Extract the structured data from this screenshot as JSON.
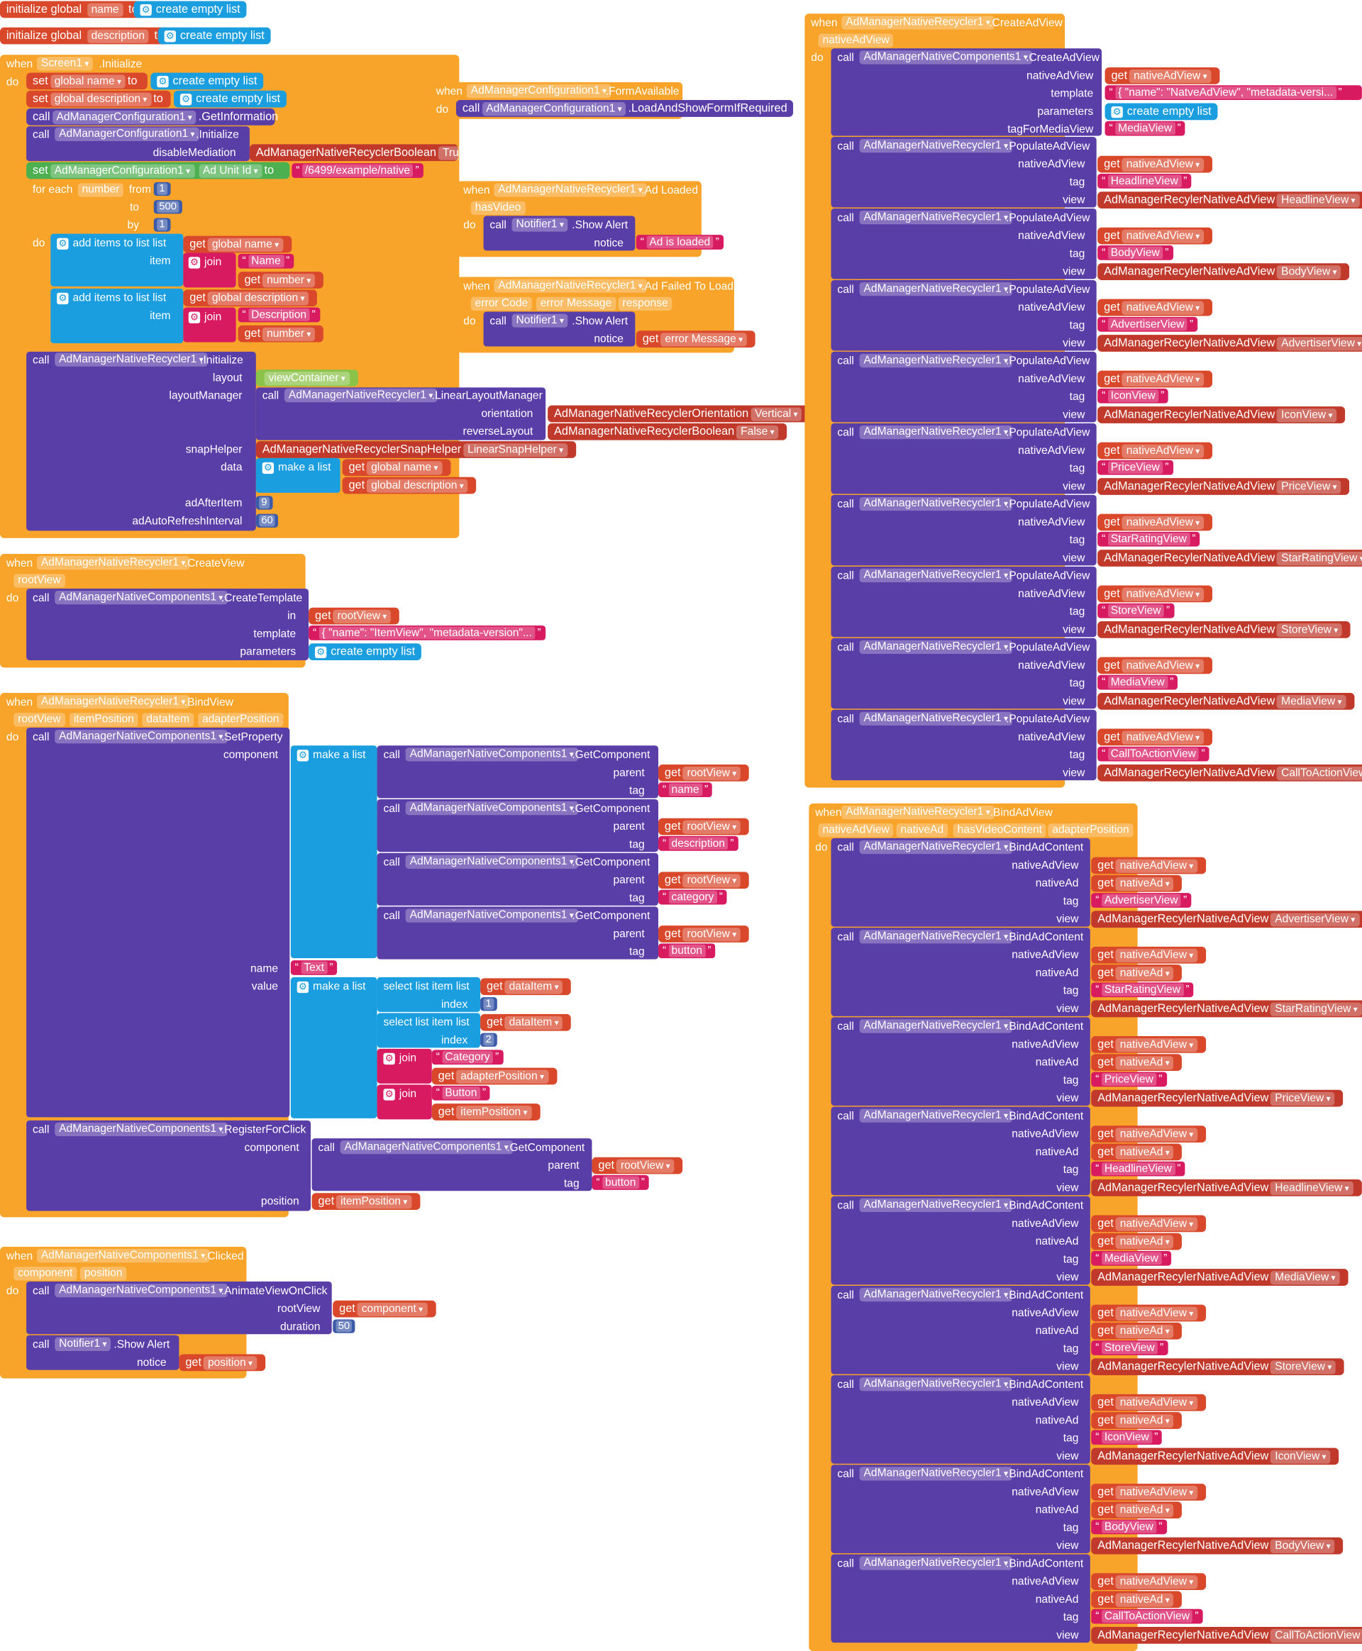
{
  "globals": {
    "init1": {
      "prefix": "initialize global",
      "var": "name",
      "to": "to",
      "value": "create empty list"
    },
    "init2": {
      "prefix": "initialize global",
      "var": "description",
      "to": "to",
      "value": "create empty list"
    }
  },
  "kw": {
    "when": "when",
    "do": "do",
    "call": "call",
    "set": "set",
    "get": "get",
    "to": "to",
    "foreach": "for each",
    "from": "from",
    "by": "by",
    "join": "join",
    "makealist": "make a list",
    "additems": "add items to list",
    "list": "list",
    "item": "item",
    "selectitem": "select list item",
    "index": "index"
  },
  "screen_init": {
    "component": "Screen1",
    "event": ".Initialize",
    "set1": {
      "var": "global name",
      "value": "create empty list"
    },
    "set2": {
      "var": "global description",
      "value": "create empty list"
    },
    "call1": {
      "component": "AdManagerConfiguration1",
      "method": ".GetInformation"
    },
    "call2": {
      "component": "AdManagerConfiguration1",
      "method": ".Initialize",
      "arg": "disableMediation",
      "value_comp": "AdManagerNativeRecyclerBoolean",
      "value": "True"
    },
    "set3": {
      "component": "AdManagerConfiguration1",
      "prop": "Ad Unit Id",
      "value": "/6499/example/native"
    },
    "loop": {
      "var": "number",
      "from": "1",
      "to": "500",
      "by": "1"
    },
    "add1": {
      "list": "global name",
      "join_text": "Name",
      "join_get": "number"
    },
    "add2": {
      "list": "global description",
      "join_text": "Description",
      "join_get": "number"
    },
    "init": {
      "component": "AdManagerNativeRecycler1",
      "method": ".Initialize",
      "layout_label": "layout",
      "layout": "viewContainer",
      "lm_label": "layoutManager",
      "lm_component": "AdManagerNativeRecycler1",
      "lm_method": ".LinearLayoutManager",
      "orientation_label": "orientation",
      "orientation_comp": "AdManagerNativeRecyclerOrientation",
      "orientation": "Vertical",
      "reverse_label": "reverseLayout",
      "reverse_comp": "AdManagerNativeRecyclerBoolean",
      "reverse": "False",
      "snap_label": "snapHelper",
      "snap_comp": "AdManagerNativeRecyclerSnapHelper",
      "snap": "LinearSnapHelper",
      "data_label": "data",
      "data1": "global name",
      "data2": "global description",
      "after_label": "adAfterItem",
      "after": "9",
      "refresh_label": "adAutoRefreshInterval",
      "refresh": "60"
    }
  },
  "config_form": {
    "component": "AdManagerConfiguration1",
    "event": ".FormAvailable",
    "call_comp": "AdManagerConfiguration1",
    "call_method": ".LoadAndShowFormIfRequired"
  },
  "ad_loaded": {
    "component": "AdManagerNativeRecycler1",
    "event": ".Ad Loaded",
    "param": "hasVideo",
    "call_comp": "Notifier1",
    "call_method": ".Show Alert",
    "arg": "notice",
    "value": "Ad is loaded"
  },
  "ad_failed": {
    "component": "AdManagerNativeRecycler1",
    "event": ".Ad Failed To Load",
    "params": [
      "error Code",
      "error Message",
      "response"
    ],
    "call_comp": "Notifier1",
    "call_method": ".Show Alert",
    "arg": "notice",
    "value": "error Message"
  },
  "create_view": {
    "component": "AdManagerNativeRecycler1",
    "event": ".CreateView",
    "param": "rootView",
    "call_comp": "AdManagerNativeComponents1",
    "call_method": ".CreateTemplate",
    "in_label": "in",
    "in": "rootView",
    "template_label": "template",
    "template": "{     \"name\": \"ItemView\",     \"metadata-version\"...",
    "params_label": "parameters",
    "params": "create empty list"
  },
  "bind_view": {
    "component": "AdManagerNativeRecycler1",
    "event": ".BindView",
    "params": [
      "rootView",
      "itemPosition",
      "dataItem",
      "adapterPosition"
    ],
    "call_comp": "AdManagerNativeComponents1",
    "call_method": ".SetProperty",
    "component_label": "component",
    "getcomp": [
      {
        "component": "AdManagerNativeComponents1",
        "method": ".GetComponent",
        "parent": "rootView",
        "tag": "name"
      },
      {
        "component": "AdManagerNativeComponents1",
        "method": ".GetComponent",
        "parent": "rootView",
        "tag": "description"
      },
      {
        "component": "AdManagerNativeComponents1",
        "method": ".GetComponent",
        "parent": "rootView",
        "tag": "category"
      },
      {
        "component": "AdManagerNativeComponents1",
        "method": ".GetComponent",
        "parent": "rootView",
        "tag": "button"
      }
    ],
    "parent_label": "parent",
    "tag_label": "tag",
    "name_label": "name",
    "name": "Text",
    "value_label": "value",
    "sel1": {
      "list": "dataItem",
      "index": "1"
    },
    "sel2": {
      "list": "dataItem",
      "index": "2"
    },
    "join1": {
      "text": "Category",
      "get": "adapterPosition"
    },
    "join2": {
      "text": "Button",
      "get": "itemPosition"
    },
    "reg": {
      "component": "AdManagerNativeComponents1",
      "method": ".RegisterForClick",
      "component_label": "component",
      "gc_comp": "AdManagerNativeComponents1",
      "gc_method": ".GetComponent",
      "parent": "rootView",
      "tag": "button",
      "position_label": "position",
      "position": "itemPosition"
    }
  },
  "clicked": {
    "component": "AdManagerNativeComponents1",
    "event": ".Clicked",
    "params": [
      "component",
      "position"
    ],
    "call1_comp": "AdManagerNativeComponents1",
    "call1_method": ".AnimateViewOnClick",
    "rootview_label": "rootView",
    "rootview": "component",
    "duration_label": "duration",
    "duration": "50",
    "call2_comp": "Notifier1",
    "call2_method": ".Show Alert",
    "notice_label": "notice",
    "notice": "position"
  },
  "create_ad_view": {
    "component": "AdManagerNativeRecycler1",
    "event": ".CreateAdView",
    "param": "nativeAdView",
    "call_comp": "AdManagerNativeComponents1",
    "call_method": ".CreateAdView",
    "nav_label": "nativeAdView",
    "nav": "nativeAdView",
    "template_label": "template",
    "template": "{     \"name\": \"NatveAdView\",     \"metadata-versi...",
    "params_label": "parameters",
    "params": "create empty list",
    "tfm_label": "tagForMediaView",
    "tfm": "MediaView",
    "populate_comp": "AdManagerNativeRecycler1",
    "populate_method": ".PopulateAdView",
    "view_comp": "AdManagerRecylerNativeAdView",
    "populate": [
      {
        "tag": "HeadlineView",
        "view": "HeadlineView"
      },
      {
        "tag": "BodyView",
        "view": "BodyView"
      },
      {
        "tag": "AdvertiserView",
        "view": "AdvertiserView"
      },
      {
        "tag": "IconView",
        "view": "IconView"
      },
      {
        "tag": "PriceView",
        "view": "PriceView"
      },
      {
        "tag": "StarRatingView",
        "view": "StarRatingView"
      },
      {
        "tag": "StoreView",
        "view": "StoreView"
      },
      {
        "tag": "MediaView",
        "view": "MediaView"
      },
      {
        "tag": "CallToActionView",
        "view": "CallToActionView"
      }
    ]
  },
  "bind_ad_view": {
    "component": "AdManagerNativeRecycler1",
    "event": ".BindAdView",
    "params": [
      "nativeAdView",
      "nativeAd",
      "hasVideoContent",
      "adapterPosition"
    ],
    "call_comp": "AdManagerNativeRecycler1",
    "call_method": ".BindAdContent",
    "view_comp": "AdManagerRecylerNativeAdView",
    "nav_label": "nativeAdView",
    "na_label": "nativeAd",
    "tag_label": "tag",
    "view_label": "view",
    "nav": "nativeAdView",
    "na": "nativeAd",
    "bind": [
      {
        "tag": "AdvertiserView",
        "view": "AdvertiserView"
      },
      {
        "tag": "StarRatingView",
        "view": "StarRatingView"
      },
      {
        "tag": "PriceView",
        "view": "PriceView"
      },
      {
        "tag": "HeadlineView",
        "view": "HeadlineView"
      },
      {
        "tag": "MediaView",
        "view": "MediaView"
      },
      {
        "tag": "StoreView",
        "view": "StoreView"
      },
      {
        "tag": "IconView",
        "view": "IconView"
      },
      {
        "tag": "BodyView",
        "view": "BodyView"
      },
      {
        "tag": "CallToActionView",
        "view": "CallToActionView"
      }
    ]
  }
}
